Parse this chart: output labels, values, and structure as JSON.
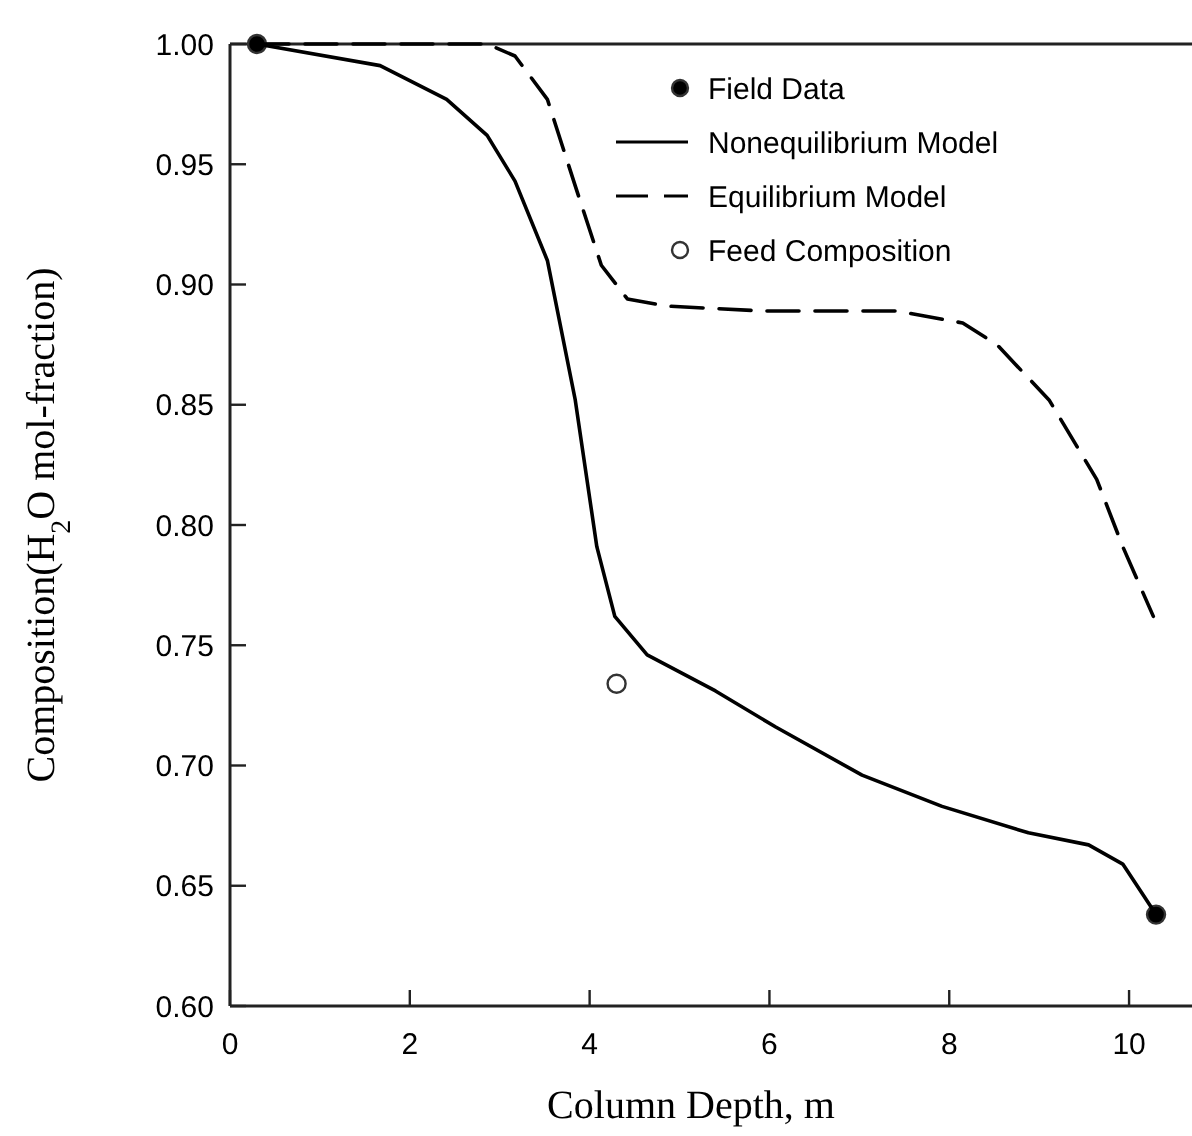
{
  "chart_data": {
    "type": "line",
    "xlabel": "Column Depth, m",
    "ylabel": "Composition(H$_{2}$O mol-fraction)",
    "xlim": [
      0,
      10.7
    ],
    "ylim": [
      0.6,
      1.0
    ],
    "xticks": [
      0,
      2,
      4,
      6,
      8,
      10
    ],
    "yticks": [
      {
        "value": 0.6,
        "label": "0.60"
      },
      {
        "value": 0.65,
        "label": "0.65"
      },
      {
        "value": 0.7,
        "label": "0.70"
      },
      {
        "value": 0.75,
        "label": "0.75"
      },
      {
        "value": 0.8,
        "label": "0.80"
      },
      {
        "value": 0.85,
        "label": "0.85"
      },
      {
        "value": 0.9,
        "label": "0.90"
      },
      {
        "value": 0.95,
        "label": "0.95"
      },
      {
        "value": 1.0,
        "label": "1.00"
      }
    ],
    "grid": false,
    "legend": "top right",
    "series": [
      {
        "name": "Field Data",
        "type": "scatter",
        "marker": "circle",
        "color": "#000000",
        "x": [
          0.3,
          10.3
        ],
        "values": [
          1.0,
          0.638
        ]
      },
      {
        "name": "Nonequilibrium Model",
        "line_style": "solid",
        "color": "#000000",
        "x": [
          0.3,
          1.67,
          2.41,
          2.86,
          3.17,
          3.53,
          3.84,
          4.08,
          4.28,
          4.64,
          5.4,
          6.07,
          7.03,
          7.92,
          8.88,
          9.55,
          9.93,
          10.3
        ],
        "values": [
          1.0,
          0.991,
          0.977,
          0.962,
          0.943,
          0.91,
          0.852,
          0.791,
          0.762,
          0.746,
          0.731,
          0.716,
          0.696,
          0.683,
          0.672,
          0.667,
          0.659,
          0.638
        ]
      },
      {
        "name": "Equilibrium Model",
        "line_style": "dashed",
        "color": "#000000",
        "x": [
          0.3,
          2.86,
          3.17,
          3.53,
          3.84,
          4.13,
          4.42,
          4.87,
          5.92,
          7.41,
          8.15,
          8.53,
          9.11,
          9.64,
          9.93,
          10.27
        ],
        "values": [
          1.0,
          1.0,
          0.995,
          0.977,
          0.941,
          0.908,
          0.894,
          0.891,
          0.889,
          0.889,
          0.884,
          0.875,
          0.852,
          0.819,
          0.791,
          0.762
        ]
      },
      {
        "name": "Feed Composition",
        "type": "scatter",
        "marker": "circle",
        "color": "#ffffff",
        "x": [
          4.3
        ],
        "values": [
          0.734
        ]
      }
    ]
  }
}
